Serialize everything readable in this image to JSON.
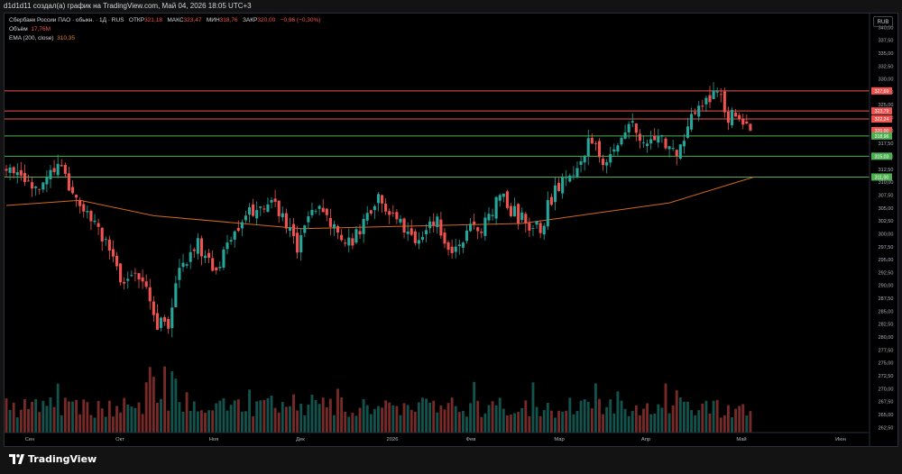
{
  "header": {
    "caption": "d1d1d11 создал(а) график на TradingView.com, Май 04, 2026 18:05 UTC+3"
  },
  "legend": {
    "symbol": "Сбербанк России ПАО · обыкн. · 1Д · RUS",
    "open_label": "ОТКР",
    "open_value": "321,18",
    "high_label": "МАКС",
    "high_value": "323,47",
    "low_label": "МИН",
    "low_value": "318,76",
    "close_label": "ЗАКР",
    "close_value": "320,00",
    "change": "−0,96 (−0,30%)",
    "volume_label": "Объём",
    "volume_value": "17,76M",
    "ema_label": "EMA (200, close)",
    "ema_value": "310,35"
  },
  "currency": "RUB",
  "brand": "TradingView",
  "colors": {
    "up": "#26a69a",
    "down": "#ef5350",
    "ema": "#d2691e",
    "support": "#4caf50",
    "resistance": "#ef5350"
  },
  "chart_data": {
    "type": "candlestick",
    "ylim": [
      261.5,
      342.5
    ],
    "y_ticks": [
      "340,00",
      "337,50",
      "335,00",
      "332,50",
      "330,00",
      "327,50",
      "325,00",
      "322,50",
      "320,00",
      "317,50",
      "315,00",
      "312,50",
      "310,00",
      "307,50",
      "305,00",
      "302,50",
      "300,00",
      "297,50",
      "295,00",
      "292,50",
      "290,00",
      "287,50",
      "285,00",
      "282,50",
      "280,00",
      "277,50",
      "275,00",
      "272,50",
      "270,00",
      "267,50",
      "265,00",
      "262,50"
    ],
    "x_labels": [
      "Сен",
      "Окт",
      "Ноя",
      "Дек",
      "2026",
      "Фев",
      "Мар",
      "Апр",
      "Май",
      "Июн"
    ],
    "horizontal_levels": [
      {
        "value": 327.69,
        "label": "327,69",
        "kind": "resistance"
      },
      {
        "value": 323.79,
        "label": "323,79",
        "kind": "resistance"
      },
      {
        "value": 322.24,
        "label": "322,24",
        "kind": "resistance"
      },
      {
        "value": 320.0,
        "label": "320,00",
        "kind": "last"
      },
      {
        "value": 318.96,
        "label": "318,96",
        "kind": "support"
      },
      {
        "value": 315.03,
        "label": "315,03",
        "kind": "support"
      },
      {
        "value": 311.0,
        "label": "311,00",
        "kind": "support"
      }
    ],
    "close_path": [
      [
        0,
        312
      ],
      [
        8,
        309
      ],
      [
        14,
        313
      ],
      [
        21,
        305
      ],
      [
        26,
        300
      ],
      [
        32,
        289
      ],
      [
        36,
        292
      ],
      [
        41,
        283
      ],
      [
        44,
        281
      ],
      [
        47,
        294
      ],
      [
        52,
        298
      ],
      [
        57,
        292
      ],
      [
        61,
        300
      ],
      [
        66,
        304
      ],
      [
        70,
        306
      ],
      [
        75,
        304
      ],
      [
        79,
        297
      ],
      [
        83,
        305
      ],
      [
        87,
        303
      ],
      [
        92,
        297
      ],
      [
        95,
        300
      ],
      [
        101,
        307
      ],
      [
        106,
        303
      ],
      [
        111,
        299
      ],
      [
        117,
        302
      ],
      [
        121,
        297
      ],
      [
        125,
        300
      ],
      [
        130,
        302
      ],
      [
        134,
        308
      ],
      [
        138,
        304
      ],
      [
        142,
        302
      ],
      [
        145,
        301
      ],
      [
        148,
        307
      ],
      [
        154,
        312
      ],
      [
        158,
        318
      ],
      [
        162,
        314
      ],
      [
        166,
        317
      ],
      [
        170,
        321
      ],
      [
        174,
        317
      ],
      [
        179,
        318
      ],
      [
        183,
        316
      ],
      [
        186,
        322
      ],
      [
        190,
        327
      ],
      [
        193,
        327
      ],
      [
        196,
        323
      ],
      [
        200,
        321
      ],
      [
        203,
        321
      ]
    ],
    "ema_path": [
      [
        0,
        305.5
      ],
      [
        20,
        306.5
      ],
      [
        40,
        303.5
      ],
      [
        80,
        301
      ],
      [
        140,
        302
      ],
      [
        180,
        306
      ],
      [
        203,
        311
      ]
    ],
    "volume_profile": "bars at bottom, mostly 0.2–0.4 of panel height, spikes in early October"
  }
}
